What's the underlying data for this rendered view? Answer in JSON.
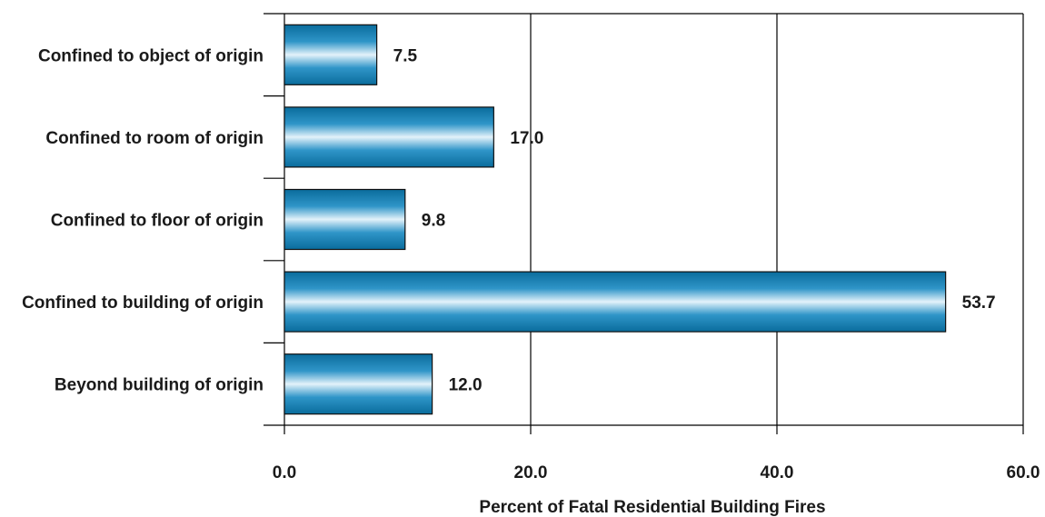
{
  "chart_data": {
    "type": "bar",
    "orientation": "horizontal",
    "categories": [
      "Confined to object of origin",
      "Confined to room of origin",
      "Confined to floor of origin",
      "Confined to building of origin",
      "Beyond building of origin"
    ],
    "values": [
      7.5,
      17.0,
      9.8,
      53.7,
      12.0
    ],
    "value_labels": [
      "7.5",
      "17.0",
      "9.8",
      "53.7",
      "12.0"
    ],
    "xlabel": "Percent of Fatal Residential Building Fires",
    "ylabel": "",
    "title": "",
    "xlim": [
      0,
      60
    ],
    "xticks": [
      0,
      20,
      40,
      60
    ],
    "xtick_labels": [
      "0.0",
      "20.0",
      "40.0",
      "60.0"
    ],
    "grid": "vertical",
    "colors": {
      "bar_dark": "#0a6c9c",
      "bar_mid": "#2f95c8",
      "bar_light": "#e3f2fa"
    }
  }
}
